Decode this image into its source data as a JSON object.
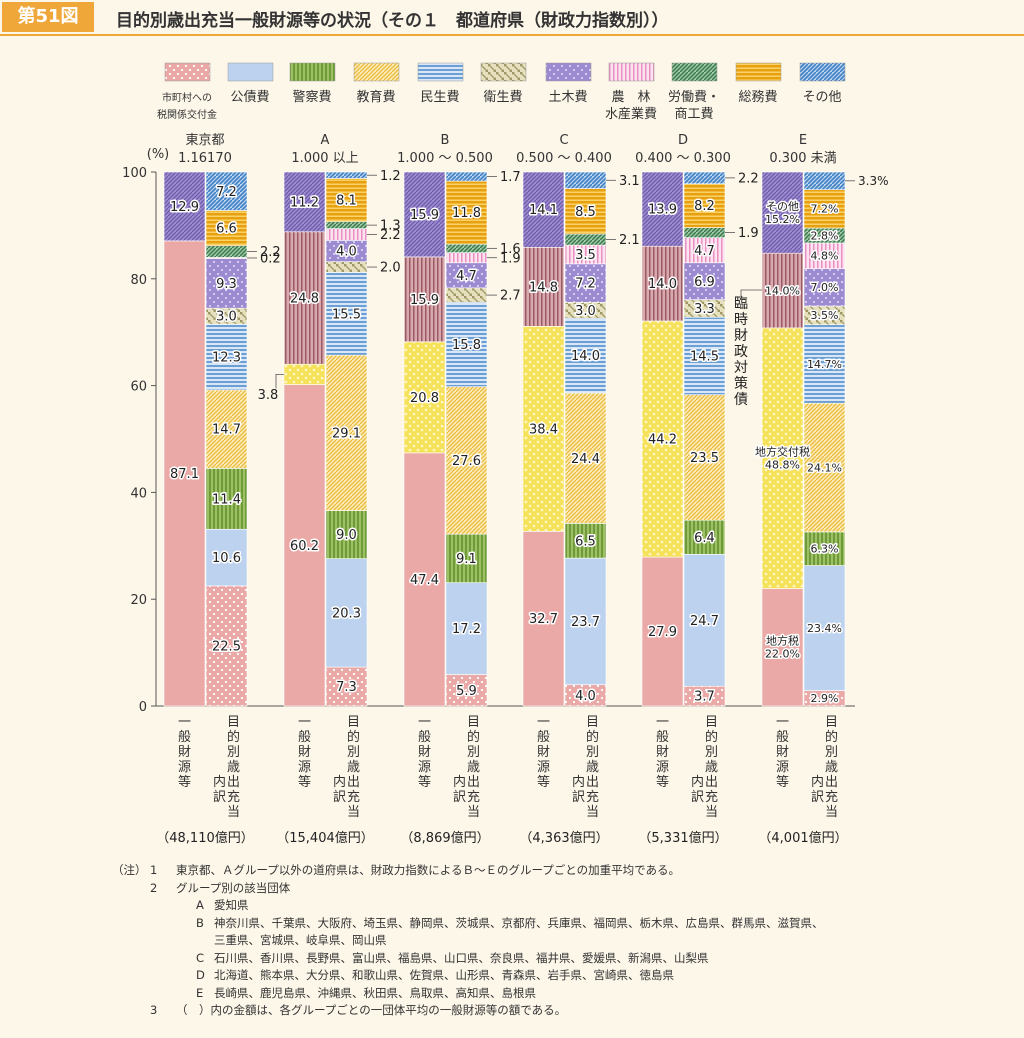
{
  "header": {
    "figure_number": "第51図",
    "title": "目的別歳出充当一般財源等の状況（その１　都道府県（財政力指数別））"
  },
  "colors": {
    "accent": "#f0a73a",
    "background": "#fdf7ea"
  },
  "chart_data": {
    "type": "bar",
    "stacked": true,
    "ylabel": "(%)",
    "ylim": [
      0,
      100
    ],
    "y_ticks": [
      "0",
      "20",
      "40",
      "60",
      "80",
      "100"
    ],
    "legend": [
      {
        "key": "tax_grant",
        "label": "市町村への税関係交付金",
        "label_lines": [
          "市町村への",
          "税関係交付金"
        ],
        "color": "#eaa9a6"
      },
      {
        "key": "debt",
        "label": "公債費",
        "label_lines": [
          "公債費"
        ],
        "color": "#bcd2ee"
      },
      {
        "key": "police",
        "label": "警察費",
        "label_lines": [
          "警察費"
        ],
        "color": "#9ec165"
      },
      {
        "key": "education",
        "label": "教育費",
        "label_lines": [
          "教育費"
        ],
        "color": "#f6d978"
      },
      {
        "key": "welfare",
        "label": "民生費",
        "label_lines": [
          "民生費"
        ],
        "color": "#8fb4dd"
      },
      {
        "key": "sanitation",
        "label": "衛生費",
        "label_lines": [
          "衛生費"
        ],
        "color": "#c7c08e"
      },
      {
        "key": "civil",
        "label": "土木費",
        "label_lines": [
          "土木費"
        ],
        "color": "#9d8bd1"
      },
      {
        "key": "agri",
        "label": "農林水産業費",
        "label_lines": [
          "農　林",
          "水産業費"
        ],
        "color": "#f0b4d6"
      },
      {
        "key": "labor",
        "label": "労働費・商工費",
        "label_lines": [
          "労働費・",
          "商工費"
        ],
        "color": "#5e9a6c"
      },
      {
        "key": "general",
        "label": "総務費",
        "label_lines": [
          "総務費"
        ],
        "color": "#f0b21f"
      },
      {
        "key": "other",
        "label": "その他",
        "label_lines": [
          "その他"
        ],
        "color": "#4f8ed0"
      }
    ],
    "x_axis_labels": {
      "left": "一般財源等",
      "right": "目的別歳出充当内訳",
      "right_lines": [
        "目的別歳出充当",
        "内訳"
      ]
    },
    "groups": [
      {
        "name_lines": [
          "東京都",
          "1.16170"
        ],
        "total": "（48,110億円）",
        "general_source": [
          {
            "name": "地方税",
            "value": 87.1,
            "label": "87.1",
            "color": "#eaa9a6"
          },
          {
            "name": "その他",
            "value": 12.9,
            "label": "12.9",
            "color": "#9d8bd1"
          }
        ],
        "breakdown": [
          {
            "key": "tax_grant",
            "value": 22.5,
            "label": "22.5"
          },
          {
            "key": "debt",
            "value": 10.6,
            "label": "10.6"
          },
          {
            "key": "police",
            "value": 11.4,
            "label": "11.4"
          },
          {
            "key": "education",
            "value": 14.7,
            "label": "14.7"
          },
          {
            "key": "welfare",
            "value": 12.3,
            "label": "12.3"
          },
          {
            "key": "sanitation",
            "value": 3.0,
            "label": "3.0"
          },
          {
            "key": "civil",
            "value": 9.3,
            "label": "9.3"
          },
          {
            "key": "agri",
            "value": 0.2,
            "label": "0.2",
            "callout": true
          },
          {
            "key": "labor",
            "value": 2.2,
            "label": "2.2",
            "callout": true
          },
          {
            "key": "general",
            "value": 6.6,
            "label": "6.6"
          },
          {
            "key": "other",
            "value": 7.2,
            "label": "7.2"
          }
        ]
      },
      {
        "name_lines": [
          "A",
          "1.000 以上"
        ],
        "total": "（15,404億円）",
        "general_source": [
          {
            "name": "地方税",
            "value": 60.2,
            "label": "60.2",
            "color": "#eaa9a6"
          },
          {
            "name": "地方交付税",
            "value": 3.8,
            "label": "3.8",
            "color": "#f6e25a",
            "callout": true
          },
          {
            "name": "臨時財政対策債",
            "value": 24.8,
            "label": "24.8",
            "color": "#b8767e"
          },
          {
            "name": "その他",
            "value": 11.2,
            "label": "11.2",
            "color": "#9d8bd1"
          }
        ],
        "breakdown": [
          {
            "key": "tax_grant",
            "value": 7.3,
            "label": "7.3"
          },
          {
            "key": "debt",
            "value": 20.3,
            "label": "20.3"
          },
          {
            "key": "police",
            "value": 9.0,
            "label": "9.0"
          },
          {
            "key": "education",
            "value": 29.1,
            "label": "29.1"
          },
          {
            "key": "welfare",
            "value": 15.5,
            "label": "15.5"
          },
          {
            "key": "sanitation",
            "value": 2.0,
            "label": "2.0",
            "callout": true
          },
          {
            "key": "civil",
            "value": 4.0,
            "label": "4.0"
          },
          {
            "key": "agri",
            "value": 2.2,
            "label": "2.2",
            "callout": true
          },
          {
            "key": "labor",
            "value": 1.3,
            "label": "1.3",
            "callout": true
          },
          {
            "key": "general",
            "value": 8.1,
            "label": "8.1"
          },
          {
            "key": "other",
            "value": 1.2,
            "label": "1.2",
            "callout": true
          }
        ]
      },
      {
        "name_lines": [
          "B",
          "1.000 〜 0.500"
        ],
        "total": "（8,869億円）",
        "general_source": [
          {
            "name": "地方税",
            "value": 47.4,
            "label": "47.4",
            "color": "#eaa9a6"
          },
          {
            "name": "地方交付税",
            "value": 20.8,
            "label": "20.8",
            "color": "#f6e25a"
          },
          {
            "name": "臨時財政対策債",
            "value": 15.9,
            "label": "15.9",
            "color": "#b8767e"
          },
          {
            "name": "その他",
            "value": 15.9,
            "label": "15.9",
            "color": "#9d8bd1"
          }
        ],
        "breakdown": [
          {
            "key": "tax_grant",
            "value": 5.9,
            "label": "5.9"
          },
          {
            "key": "debt",
            "value": 17.2,
            "label": "17.2"
          },
          {
            "key": "police",
            "value": 9.1,
            "label": "9.1"
          },
          {
            "key": "education",
            "value": 27.6,
            "label": "27.6"
          },
          {
            "key": "welfare",
            "value": 15.8,
            "label": "15.8"
          },
          {
            "key": "sanitation",
            "value": 2.7,
            "label": "2.7",
            "callout": true
          },
          {
            "key": "civil",
            "value": 4.7,
            "label": "4.7"
          },
          {
            "key": "agri",
            "value": 1.9,
            "label": "1.9",
            "callout": true
          },
          {
            "key": "labor",
            "value": 1.6,
            "label": "1.6",
            "callout": true
          },
          {
            "key": "general",
            "value": 11.8,
            "label": "11.8"
          },
          {
            "key": "other",
            "value": 1.7,
            "label": "1.7",
            "callout": true
          }
        ]
      },
      {
        "name_lines": [
          "C",
          "0.500 〜 0.400"
        ],
        "total": "（4,363億円）",
        "general_source": [
          {
            "name": "地方税",
            "value": 32.7,
            "label": "32.7",
            "color": "#eaa9a6"
          },
          {
            "name": "地方交付税",
            "value": 38.4,
            "label": "38.4",
            "color": "#f6e25a"
          },
          {
            "name": "臨時財政対策債",
            "value": 14.8,
            "label": "14.8",
            "color": "#b8767e"
          },
          {
            "name": "その他",
            "value": 14.1,
            "label": "14.1",
            "color": "#9d8bd1"
          }
        ],
        "breakdown": [
          {
            "key": "tax_grant",
            "value": 4.0,
            "label": "4.0"
          },
          {
            "key": "debt",
            "value": 23.7,
            "label": "23.7"
          },
          {
            "key": "police",
            "value": 6.5,
            "label": "6.5"
          },
          {
            "key": "education",
            "value": 24.4,
            "label": "24.4"
          },
          {
            "key": "welfare",
            "value": 14.0,
            "label": "14.0"
          },
          {
            "key": "sanitation",
            "value": 3.0,
            "label": "3.0"
          },
          {
            "key": "civil",
            "value": 7.2,
            "label": "7.2"
          },
          {
            "key": "agri",
            "value": 3.5,
            "label": "3.5"
          },
          {
            "key": "labor",
            "value": 2.1,
            "label": "2.1",
            "callout": true
          },
          {
            "key": "general",
            "value": 8.5,
            "label": "8.5"
          },
          {
            "key": "other",
            "value": 3.1,
            "label": "3.1",
            "callout": true
          }
        ]
      },
      {
        "name_lines": [
          "D",
          "0.400 〜 0.300"
        ],
        "total": "（5,331億円）",
        "general_source": [
          {
            "name": "地方税",
            "value": 27.9,
            "label": "27.9",
            "color": "#eaa9a6"
          },
          {
            "name": "地方交付税",
            "value": 44.2,
            "label": "44.2",
            "color": "#f6e25a"
          },
          {
            "name": "臨時財政対策債",
            "value": 14.0,
            "label": "14.0",
            "color": "#b8767e"
          },
          {
            "name": "その他",
            "value": 13.9,
            "label": "13.9",
            "color": "#9d8bd1"
          }
        ],
        "breakdown": [
          {
            "key": "tax_grant",
            "value": 3.7,
            "label": "3.7"
          },
          {
            "key": "debt",
            "value": 24.7,
            "label": "24.7"
          },
          {
            "key": "police",
            "value": 6.4,
            "label": "6.4"
          },
          {
            "key": "education",
            "value": 23.5,
            "label": "23.5"
          },
          {
            "key": "welfare",
            "value": 14.5,
            "label": "14.5"
          },
          {
            "key": "sanitation",
            "value": 3.3,
            "label": "3.3"
          },
          {
            "key": "civil",
            "value": 6.9,
            "label": "6.9"
          },
          {
            "key": "agri",
            "value": 4.7,
            "label": "4.7"
          },
          {
            "key": "labor",
            "value": 1.9,
            "label": "1.9",
            "callout": true
          },
          {
            "key": "general",
            "value": 8.2,
            "label": "8.2"
          },
          {
            "key": "other",
            "value": 2.2,
            "label": "2.2",
            "callout": true
          }
        ]
      },
      {
        "name_lines": [
          "E",
          "0.300 未満"
        ],
        "total": "（4,001億円）",
        "general_source": [
          {
            "name": "地方税",
            "value": 22.0,
            "label": "地方税\n22.0%",
            "color": "#eaa9a6"
          },
          {
            "name": "地方交付税",
            "value": 48.8,
            "label": "地方交付税\n48.8%",
            "color": "#f6e25a"
          },
          {
            "name": "臨時財政対策債",
            "value": 14.0,
            "label": "14.0%",
            "color": "#b8767e"
          },
          {
            "name": "その他",
            "value": 15.2,
            "label": "その他\n15.2%",
            "color": "#9d8bd1"
          }
        ],
        "breakdown": [
          {
            "key": "tax_grant",
            "value": 2.9,
            "label": "2.9%"
          },
          {
            "key": "debt",
            "value": 23.4,
            "label": "23.4%"
          },
          {
            "key": "police",
            "value": 6.3,
            "label": "6.3%"
          },
          {
            "key": "education",
            "value": 24.1,
            "label": "24.1%"
          },
          {
            "key": "welfare",
            "value": 14.7,
            "label": "14.7%"
          },
          {
            "key": "sanitation",
            "value": 3.5,
            "label": "3.5%"
          },
          {
            "key": "civil",
            "value": 7.0,
            "label": "7.0%"
          },
          {
            "key": "agri",
            "value": 4.8,
            "label": "4.8%"
          },
          {
            "key": "labor",
            "value": 2.8,
            "label": "2.8%"
          },
          {
            "key": "general",
            "value": 7.2,
            "label": "7.2%"
          },
          {
            "key": "other",
            "value": 3.3,
            "label": "3.3%",
            "callout": true
          }
        ]
      }
    ],
    "annotations": [
      {
        "text": "臨時財政対策債",
        "target": "E 一般財源等 臨時財政対策債"
      }
    ]
  },
  "notes": {
    "marker": "（注）",
    "items": [
      {
        "num": "1",
        "text": "東京都、Ａグループ以外の道府県は、財政力指数によるＢ〜Ｅのグループごとの加重平均である。"
      },
      {
        "num": "2",
        "text": "グループ別の該当団体"
      },
      {
        "num": "3",
        "text": "（　）内の金額は、各グループごとの一団体平均の一般財源等の額である。"
      }
    ],
    "groups": [
      {
        "label": "A",
        "lines": [
          "愛知県"
        ]
      },
      {
        "label": "B",
        "lines": [
          "神奈川県、千葉県、大阪府、埼玉県、静岡県、茨城県、京都府、兵庫県、福岡県、栃木県、広島県、群馬県、滋賀県、",
          "三重県、宮城県、岐阜県、岡山県"
        ]
      },
      {
        "label": "C",
        "lines": [
          "石川県、香川県、長野県、富山県、福島県、山口県、奈良県、福井県、愛媛県、新潟県、山梨県"
        ]
      },
      {
        "label": "D",
        "lines": [
          "北海道、熊本県、大分県、和歌山県、佐賀県、山形県、青森県、岩手県、宮崎県、徳島県"
        ]
      },
      {
        "label": "E",
        "lines": [
          "長崎県、鹿児島県、沖縄県、秋田県、鳥取県、高知県、島根県"
        ]
      }
    ]
  }
}
